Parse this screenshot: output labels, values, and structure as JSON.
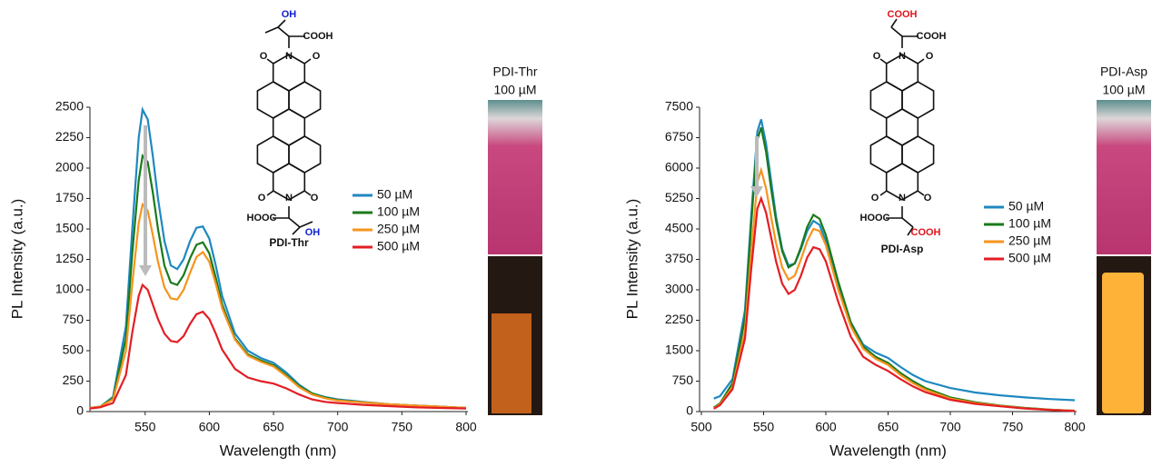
{
  "chart_data": [
    {
      "type": "line",
      "xlabel": "Wavelength (nm)",
      "ylabel": "PL Intensity (a.u.)",
      "compound": "PDI-Thr",
      "photo_caption": [
        "PDI-Thr",
        "100 µM"
      ],
      "structure_labels": [
        "OH",
        "COOH",
        "O",
        "N",
        "O",
        "O",
        "N",
        "O",
        "HOOC",
        "OH"
      ],
      "xlim": [
        507,
        800
      ],
      "ylim": [
        0,
        2500
      ],
      "xticks": [
        550,
        600,
        650,
        700,
        750,
        800
      ],
      "yticks": [
        0,
        250,
        500,
        750,
        1000,
        1250,
        1500,
        1750,
        2000,
        2250,
        2500
      ],
      "x": [
        507,
        515,
        525,
        535,
        540,
        545,
        548,
        552,
        556,
        560,
        565,
        570,
        575,
        580,
        585,
        590,
        595,
        600,
        605,
        610,
        620,
        630,
        640,
        650,
        660,
        670,
        680,
        690,
        700,
        720,
        740,
        760,
        780,
        800
      ],
      "series": [
        {
          "name": "50 µM",
          "color": "#1f88c0",
          "values": [
            30,
            40,
            120,
            700,
            1500,
            2250,
            2480,
            2400,
            2100,
            1750,
            1400,
            1200,
            1170,
            1250,
            1400,
            1510,
            1520,
            1420,
            1200,
            950,
            640,
            500,
            440,
            400,
            320,
            220,
            150,
            120,
            100,
            80,
            60,
            50,
            40,
            30
          ]
        },
        {
          "name": "100 µM",
          "color": "#1a7a1a",
          "values": [
            30,
            40,
            110,
            600,
            1300,
            1900,
            2100,
            2050,
            1800,
            1500,
            1200,
            1060,
            1040,
            1120,
            1260,
            1370,
            1390,
            1300,
            1100,
            880,
            600,
            470,
            420,
            380,
            300,
            210,
            150,
            115,
            95,
            75,
            60,
            50,
            40,
            30
          ]
        },
        {
          "name": "250 µM",
          "color": "#f7941d",
          "values": [
            30,
            40,
            100,
            500,
            1050,
            1550,
            1700,
            1650,
            1450,
            1230,
            1020,
            930,
            920,
            1000,
            1140,
            1270,
            1310,
            1230,
            1050,
            850,
            590,
            460,
            410,
            370,
            290,
            200,
            140,
            110,
            90,
            75,
            60,
            50,
            40,
            30
          ]
        },
        {
          "name": "500 µM",
          "color": "#e31e24",
          "values": [
            25,
            35,
            70,
            300,
            650,
            950,
            1040,
            1000,
            880,
            760,
            640,
            580,
            570,
            620,
            720,
            800,
            820,
            760,
            640,
            510,
            350,
            280,
            250,
            230,
            190,
            140,
            100,
            80,
            70,
            55,
            45,
            35,
            30,
            25
          ]
        }
      ]
    },
    {
      "type": "line",
      "xlabel": "Wavelength (nm)",
      "ylabel": "PL Intensity (a.u.)",
      "compound": "PDI-Asp",
      "photo_caption": [
        "PDI-Asp",
        "100 µM"
      ],
      "structure_labels": [
        "COOH",
        "COOH",
        "O",
        "N",
        "O",
        "O",
        "N",
        "O",
        "HOOC",
        "COOH"
      ],
      "xlim": [
        500,
        800
      ],
      "ylim": [
        0,
        7500
      ],
      "xticks": [
        500,
        550,
        600,
        650,
        700,
        750,
        800
      ],
      "yticks": [
        0,
        750,
        1500,
        2250,
        3000,
        3750,
        4500,
        5250,
        6000,
        6750,
        7500
      ],
      "x": [
        510,
        515,
        525,
        535,
        540,
        545,
        548,
        552,
        556,
        560,
        565,
        570,
        575,
        580,
        585,
        590,
        595,
        600,
        610,
        620,
        630,
        640,
        650,
        660,
        670,
        680,
        700,
        720,
        740,
        760,
        780,
        800
      ],
      "series": [
        {
          "name": "50 µM",
          "color": "#1f88c0",
          "values": [
            320,
            380,
            800,
            2500,
            4800,
            6900,
            7200,
            6600,
            5700,
            4800,
            4000,
            3600,
            3650,
            4000,
            4450,
            4700,
            4600,
            4200,
            3100,
            2200,
            1650,
            1450,
            1320,
            1100,
            900,
            750,
            580,
            470,
            400,
            350,
            310,
            280
          ]
        },
        {
          "name": "100 µM",
          "color": "#1a7a1a",
          "values": [
            100,
            200,
            700,
            2300,
            4600,
            6700,
            7000,
            6400,
            5500,
            4700,
            3950,
            3550,
            3650,
            4050,
            4550,
            4850,
            4750,
            4350,
            3200,
            2200,
            1600,
            1350,
            1200,
            950,
            750,
            580,
            350,
            230,
            150,
            90,
            50,
            20
          ]
        },
        {
          "name": "250 µM",
          "color": "#f7941d",
          "values": [
            80,
            180,
            600,
            2000,
            3900,
            5650,
            5950,
            5500,
            4800,
            4150,
            3550,
            3250,
            3350,
            3750,
            4200,
            4500,
            4450,
            4100,
            3000,
            2100,
            1550,
            1300,
            1150,
            900,
            700,
            540,
            320,
            210,
            140,
            80,
            45,
            20
          ]
        },
        {
          "name": "500 µM",
          "color": "#e31e24",
          "values": [
            70,
            160,
            550,
            1800,
            3500,
            5000,
            5250,
            4900,
            4300,
            3700,
            3150,
            2900,
            3000,
            3350,
            3800,
            4050,
            4000,
            3700,
            2700,
            1850,
            1350,
            1150,
            1000,
            800,
            620,
            480,
            290,
            190,
            130,
            75,
            40,
            15
          ]
        }
      ]
    }
  ]
}
